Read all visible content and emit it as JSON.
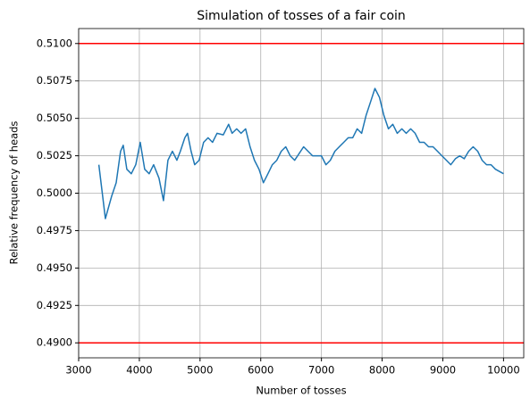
{
  "chart_data": {
    "type": "line",
    "title": "Simulation of tosses of a fair coin",
    "xlabel": "Number of tosses",
    "ylabel": "Relative frequency of heads",
    "x": [
      3333,
      3441,
      3544,
      3618,
      3691,
      3735,
      3794,
      3868,
      3941,
      4015,
      4088,
      4162,
      4235,
      4324,
      4397,
      4471,
      4544,
      4618,
      4676,
      4750,
      4794,
      4853,
      4912,
      4985,
      5059,
      5132,
      5206,
      5279,
      5382,
      5471,
      5529,
      5603,
      5676,
      5750,
      5824,
      5897,
      5971,
      6044,
      6118,
      6191,
      6265,
      6338,
      6412,
      6485,
      6559,
      6706,
      6853,
      7000,
      7074,
      7147,
      7221,
      7294,
      7368,
      7441,
      7515,
      7588,
      7662,
      7735,
      7809,
      7882,
      7956,
      8029,
      8103,
      8176,
      8250,
      8324,
      8397,
      8471,
      8544,
      8618,
      8691,
      8765,
      8838,
      8912,
      8985,
      9059,
      9132,
      9206,
      9279,
      9353,
      9426,
      9500,
      9574,
      9647,
      9721,
      9794,
      9868,
      10000
    ],
    "series": [
      {
        "name": "relative frequency",
        "color": "#1f77b4",
        "values": [
          0.5019,
          0.4983,
          0.4998,
          0.5007,
          0.5028,
          0.5032,
          0.5016,
          0.5013,
          0.5019,
          0.5034,
          0.5016,
          0.5013,
          0.5019,
          0.501,
          0.4995,
          0.5022,
          0.5028,
          0.5022,
          0.5028,
          0.5037,
          0.504,
          0.5028,
          0.5019,
          0.5022,
          0.5034,
          0.5037,
          0.5034,
          0.504,
          0.5039,
          0.5046,
          0.504,
          0.5043,
          0.504,
          0.5043,
          0.5031,
          0.5022,
          0.5016,
          0.5007,
          0.5013,
          0.5019,
          0.5022,
          0.5028,
          0.5031,
          0.5025,
          0.5022,
          0.5031,
          0.5025,
          0.5025,
          0.5019,
          0.5022,
          0.5028,
          0.5031,
          0.5034,
          0.5037,
          0.5037,
          0.5043,
          0.504,
          0.5052,
          0.5061,
          0.507,
          0.5064,
          0.5052,
          0.5043,
          0.5046,
          0.504,
          0.5043,
          0.504,
          0.5043,
          0.504,
          0.5034,
          0.5034,
          0.5031,
          0.5031,
          0.5028,
          0.5025,
          0.5022,
          0.5019,
          0.5023,
          0.5025,
          0.5023,
          0.5028,
          0.5031,
          0.5028,
          0.5022,
          0.5019,
          0.5019,
          0.5016,
          0.5013
        ]
      }
    ],
    "hlines": [
      0.49,
      0.51
    ],
    "hline_color": "#ff0000",
    "xlim": [
      3000,
      10333
    ],
    "ylim": [
      0.489,
      0.511
    ],
    "xticks": [
      3000,
      4000,
      5000,
      6000,
      7000,
      8000,
      9000,
      10000
    ],
    "yticks": [
      {
        "value": 0.49,
        "label": "0.4900"
      },
      {
        "value": 0.4925,
        "label": "0.4925"
      },
      {
        "value": 0.495,
        "label": "0.4950"
      },
      {
        "value": 0.4975,
        "label": "0.4975"
      },
      {
        "value": 0.5,
        "label": "0.5000"
      },
      {
        "value": 0.5025,
        "label": "0.5025"
      },
      {
        "value": 0.505,
        "label": "0.5050"
      },
      {
        "value": 0.5075,
        "label": "0.5075"
      },
      {
        "value": 0.51,
        "label": "0.5100"
      }
    ],
    "grid": true
  }
}
